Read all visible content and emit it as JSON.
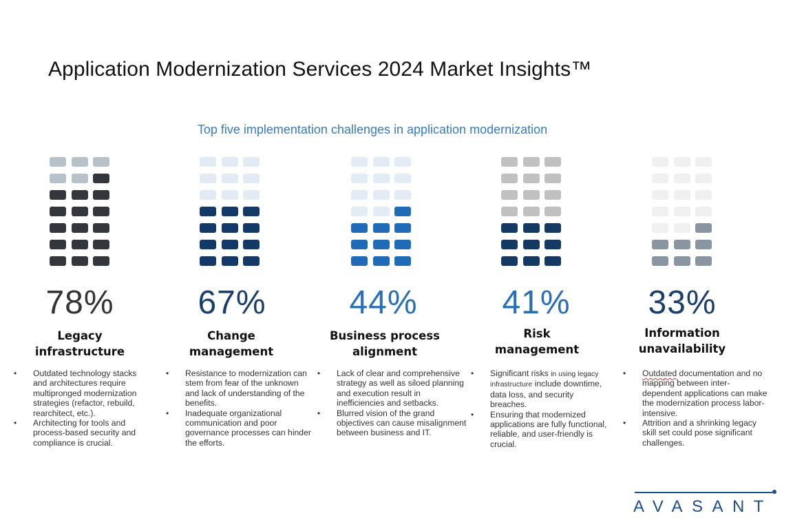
{
  "header": {
    "title": "Application Modernization Services 2024 Market Insights™",
    "subtitle": "Top five implementation challenges in application modernization"
  },
  "chart_data": {
    "type": "table",
    "title": "Top five implementation challenges in application modernization",
    "unit": "percent",
    "grid_cells_per_item": 21,
    "categories": [
      "Legacy infrastructure",
      "Change management",
      "Business process alignment",
      "Risk management",
      "Information unavailability"
    ],
    "values": [
      78,
      67,
      44,
      41,
      33
    ],
    "filled_cells": [
      16,
      12,
      10,
      9,
      7
    ]
  },
  "challenges": [
    {
      "percent_label": "78%",
      "name_lines": [
        "Legacy",
        "infrastructure"
      ],
      "percent_value": 78,
      "filled_cells": 16,
      "colors": {
        "filled": "#33363b",
        "empty": "#b9c1c8",
        "percent_text": "#333333"
      },
      "bullets": [
        "Outdated technology stacks and architectures require multipronged modernization strategies (refactor, rebuild, rearchitect, etc.).",
        "Architecting for tools and process-based security and compliance is crucial."
      ]
    },
    {
      "percent_label": "67%",
      "name_lines": [
        "Change",
        "management"
      ],
      "percent_value": 67,
      "filled_cells": 12,
      "colors": {
        "filled": "#133a66",
        "empty": "#e2ebf4",
        "percent_text": "#1b3f6b"
      },
      "bullets": [
        "Resistance to modernization can stem from fear of the unknown and lack of understanding of the benefits.",
        "Inadequate organizational communication and poor governance processes can hinder the efforts."
      ]
    },
    {
      "percent_label": "44%",
      "name_lines": [
        "Business process",
        "alignment"
      ],
      "percent_value": 44,
      "filled_cells": 10,
      "colors": {
        "filled": "#1f6bb8",
        "empty": "#e3ecf5",
        "percent_text": "#2a6fb5"
      },
      "bullets": [
        "Lack of clear and comprehensive strategy as well as siloed planning and execution result in inefficiencies and setbacks.",
        "Blurred vision of the grand objectives can cause misalignment between business and IT."
      ]
    },
    {
      "percent_label": "41%",
      "name_lines": [
        "Risk",
        "management"
      ],
      "percent_value": 41,
      "filled_cells": 9,
      "colors": {
        "filled": "#143a64",
        "empty": "#c0c0c0",
        "percent_text": "#2a6fb5"
      },
      "bullets_rich": [
        {
          "main": "Significant risks",
          "small": "in using legacy infrastructure",
          "rest": "include downtime, data loss, and security breaches."
        },
        {
          "main": "Ensuring that modernized applications are fully functional, reliable, and user-friendly is crucial."
        }
      ]
    },
    {
      "percent_label": "33%",
      "name_lines": [
        "Information",
        "unavailability"
      ],
      "percent_value": 33,
      "filled_cells": 7,
      "colors": {
        "filled": "#8995a1",
        "empty": "#f0f0f0",
        "percent_text": "#1b3f6b"
      },
      "bullets_rich": [
        {
          "flagged": "Outdated",
          "rest": " documentation and no mapping between inter-dependent applications can make the modernization process labor-intensive."
        },
        {
          "main": "Attrition and a shrinking legacy skill set could pose significant challenges."
        }
      ]
    }
  ],
  "logo": {
    "text": "AVASANT",
    "color": "#1f4e8a"
  }
}
